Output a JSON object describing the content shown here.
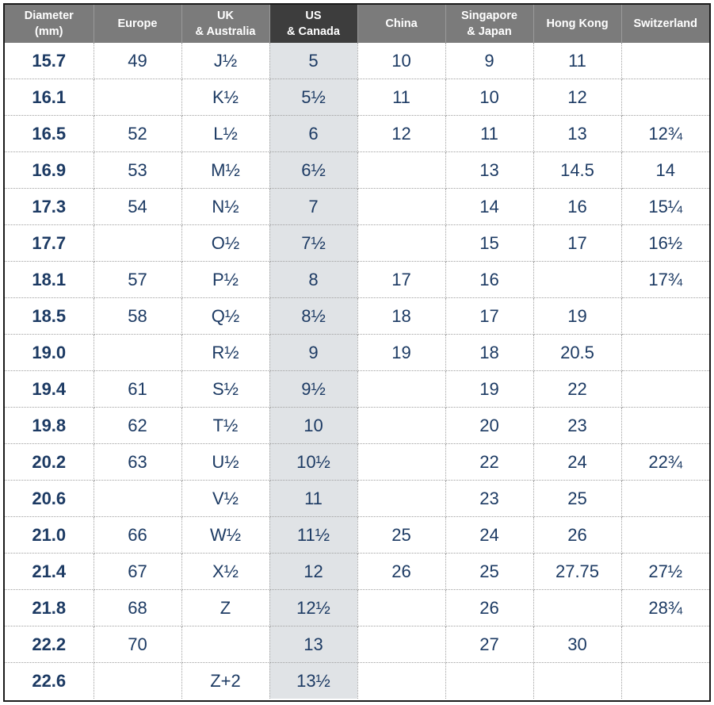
{
  "table": {
    "headers": [
      [
        "Diameter",
        "(mm)"
      ],
      [
        "Europe"
      ],
      [
        "UK",
        "& Australia"
      ],
      [
        "US",
        "& Canada"
      ],
      [
        "China"
      ],
      [
        "Singapore",
        "& Japan"
      ],
      [
        "Hong Kong"
      ],
      [
        "Switzerland"
      ]
    ],
    "highlight_column": 3,
    "rows": [
      [
        "15.7",
        "49",
        "J½",
        "5",
        "10",
        "9",
        "11",
        ""
      ],
      [
        "16.1",
        "",
        "K½",
        "5½",
        "11",
        "10",
        "12",
        ""
      ],
      [
        "16.5",
        "52",
        "L½",
        "6",
        "12",
        "11",
        "13",
        "12¾"
      ],
      [
        "16.9",
        "53",
        "M½",
        "6½",
        "",
        "13",
        "14.5",
        "14"
      ],
      [
        "17.3",
        "54",
        "N½",
        "7",
        "",
        "14",
        "16",
        "15¼"
      ],
      [
        "17.7",
        "",
        "O½",
        "7½",
        "",
        "15",
        "17",
        "16½"
      ],
      [
        "18.1",
        "57",
        "P½",
        "8",
        "17",
        "16",
        "",
        "17¾"
      ],
      [
        "18.5",
        "58",
        "Q½",
        "8½",
        "18",
        "17",
        "19",
        ""
      ],
      [
        "19.0",
        "",
        "R½",
        "9",
        "19",
        "18",
        "20.5",
        ""
      ],
      [
        "19.4",
        "61",
        "S½",
        "9½",
        "",
        "19",
        "22",
        ""
      ],
      [
        "19.8",
        "62",
        "T½",
        "10",
        "",
        "20",
        "23",
        ""
      ],
      [
        "20.2",
        "63",
        "U½",
        "10½",
        "",
        "22",
        "24",
        "22¾"
      ],
      [
        "20.6",
        "",
        "V½",
        "11",
        "",
        "23",
        "25",
        ""
      ],
      [
        "21.0",
        "66",
        "W½",
        "11½",
        "25",
        "24",
        "26",
        ""
      ],
      [
        "21.4",
        "67",
        "X½",
        "12",
        "26",
        "25",
        "27.75",
        "27½"
      ],
      [
        "21.8",
        "68",
        "Z",
        "12½",
        "",
        "26",
        "",
        "28¾"
      ],
      [
        "22.2",
        "70",
        "",
        "13",
        "",
        "27",
        "30",
        ""
      ],
      [
        "22.6",
        "",
        "Z+2",
        "13½",
        "",
        "",
        "",
        ""
      ]
    ]
  },
  "colors": {
    "header_bg": "#7b7b7b",
    "header_highlight_bg": "#3d3d3d",
    "header_text": "#ffffff",
    "cell_text": "#1c3a63",
    "column_highlight_bg": "#e0e3e6",
    "frame_border": "#1a1a1a"
  }
}
